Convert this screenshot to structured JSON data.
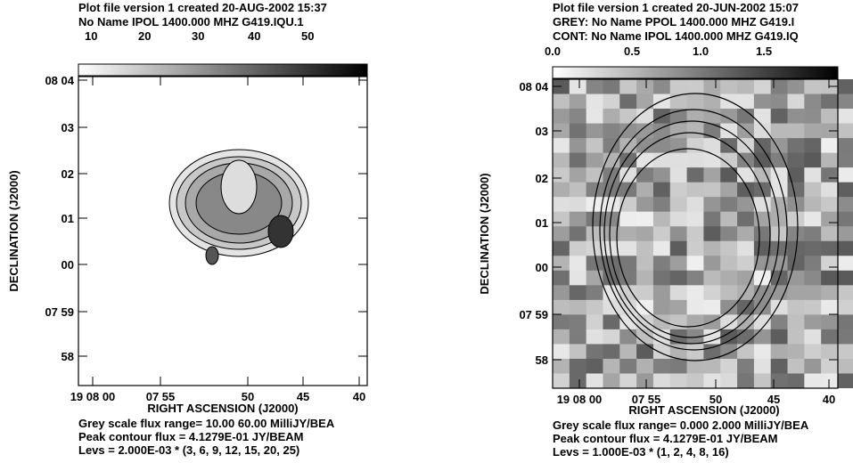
{
  "panels": [
    {
      "header": [
        "Plot file version 1  created 20-AUG-2002 15:37",
        "No Name  IPOL  1400.000 MHZ  G419.IQU.1"
      ],
      "wedge_labels": [
        "10",
        "20",
        "30",
        "40",
        "50"
      ],
      "y_label": "DECLINATION (J2000)",
      "y_ticks": [
        "08 04",
        "03",
        "02",
        "01",
        "00",
        "07 59",
        "58"
      ],
      "x_ticks": [
        "19 08 00",
        "07 55",
        "50",
        "45",
        "40"
      ],
      "x_label": "RIGHT ASCENSION (J2000)",
      "footer": [
        "Grey scale flux range= 10.00 60.00 MilliJY/BEA",
        "Peak contour flux =  4.1279E-01 JY/BEAM",
        "Levs = 2.000E-03 * (3, 6, 9, 12, 15, 20, 25)"
      ]
    },
    {
      "header": [
        "Plot file version 1  created 20-JUN-2002 15:07",
        "GREY: No Name  PPOL  1400.000 MHZ  G419.I",
        "CONT: No Name  IPOL  1400.000 MHZ  G419.IQ"
      ],
      "wedge_labels": [
        "0.0",
        "0.5",
        "1.0",
        "1.5"
      ],
      "y_label": "DECLINATION (J2000)",
      "y_ticks": [
        "08 04",
        "03",
        "02",
        "01",
        "00",
        "07 59",
        "58"
      ],
      "x_ticks": [
        "19 08 00",
        "07 55",
        "50",
        "45",
        "40"
      ],
      "x_label": "RIGHT ASCENSION (J2000)",
      "footer": [
        "Grey scale flux range= 0.000 2.000 MilliJY/BEA",
        "Peak contour flux =  4.1279E-01 JY/BEAM",
        "Levs = 1.000E-03 * (1, 2, 4, 8, 16)"
      ]
    }
  ]
}
